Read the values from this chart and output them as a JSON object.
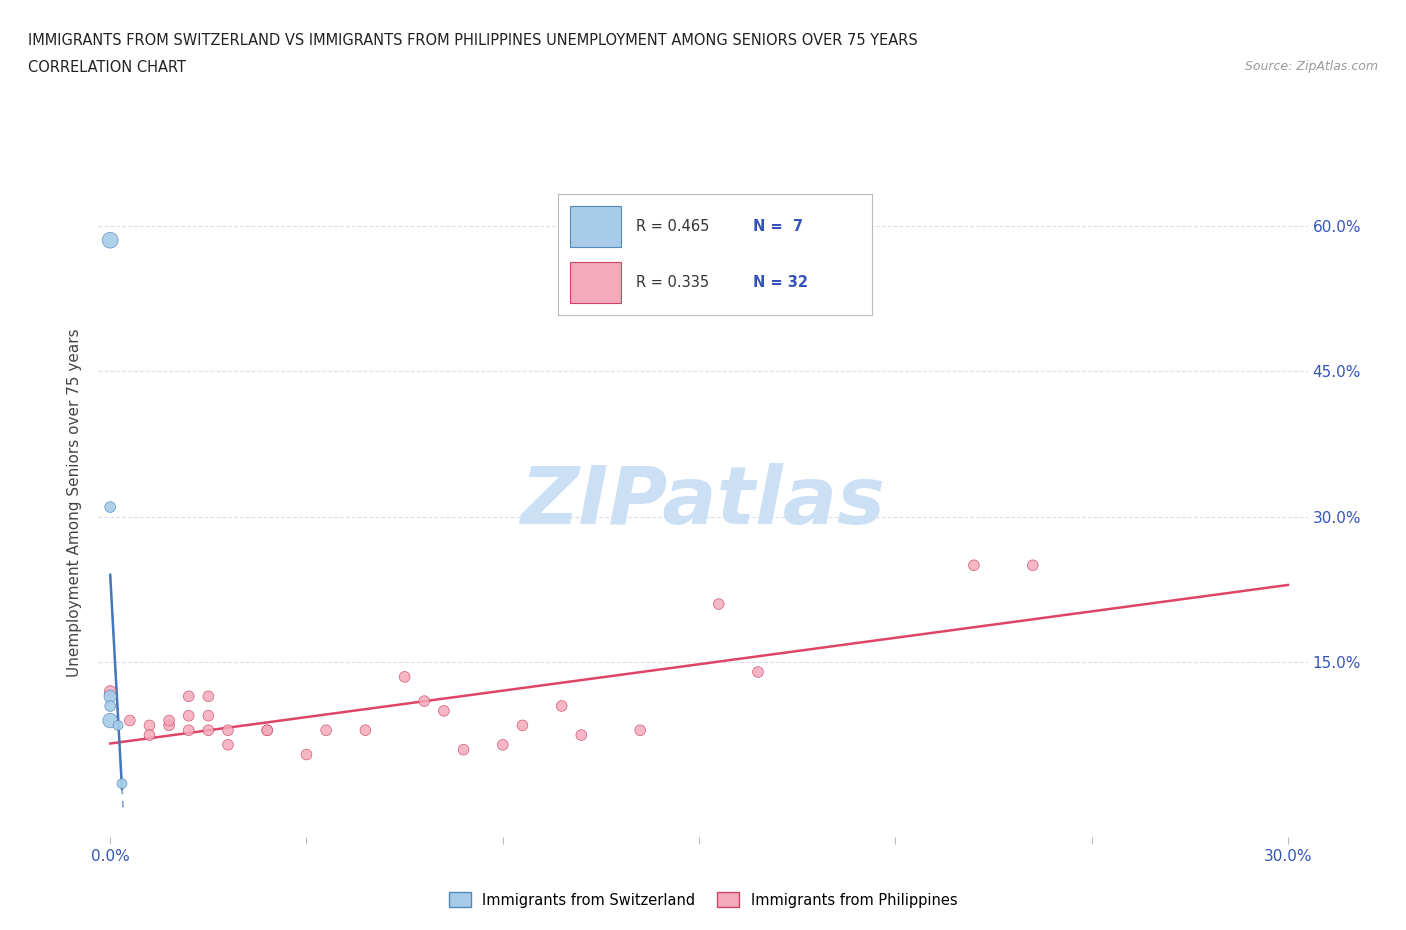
{
  "title_line1": "IMMIGRANTS FROM SWITZERLAND VS IMMIGRANTS FROM PHILIPPINES UNEMPLOYMENT AMONG SENIORS OVER 75 YEARS",
  "title_line2": "CORRELATION CHART",
  "source_text": "Source: ZipAtlas.com",
  "ylabel": "Unemployment Among Seniors over 75 years",
  "xlim": [
    -0.003,
    0.305
  ],
  "ylim": [
    -0.03,
    0.66
  ],
  "xtick_positions": [
    0.0,
    0.05,
    0.1,
    0.15,
    0.2,
    0.25,
    0.3
  ],
  "ytick_positions": [
    0.0,
    0.15,
    0.3,
    0.45,
    0.6
  ],
  "legend_entries": [
    {
      "r": "R = 0.465",
      "n": "N =  7",
      "color": "#a8cce8"
    },
    {
      "r": "R = 0.335",
      "n": "N = 32",
      "color": "#f4aabb"
    }
  ],
  "switzerland_color": "#a8cce8",
  "switzerland_edge": "#5588bb",
  "philippines_color": "#f4aabb",
  "philippines_edge": "#cc4466",
  "trend_sw_color": "#4477bb",
  "trend_ph_color": "#dd4466",
  "watermark_text": "ZIPatlas",
  "watermark_color": "#cce0f5",
  "source_color": "#999999",
  "grid_color": "#ddddee",
  "axis_label_color": "#3355bb",
  "switzerland_x": [
    0.0,
    0.0,
    0.0,
    0.0,
    0.0,
    0.002,
    0.003
  ],
  "switzerland_y": [
    0.585,
    0.31,
    0.115,
    0.105,
    0.09,
    0.085,
    0.025
  ],
  "switzerland_sizes": [
    130,
    60,
    80,
    60,
    110,
    50,
    50
  ],
  "philippines_x": [
    0.0,
    0.005,
    0.01,
    0.01,
    0.015,
    0.015,
    0.02,
    0.02,
    0.02,
    0.025,
    0.025,
    0.025,
    0.03,
    0.03,
    0.04,
    0.04,
    0.05,
    0.055,
    0.065,
    0.075,
    0.08,
    0.085,
    0.09,
    0.1,
    0.105,
    0.115,
    0.12,
    0.135,
    0.155,
    0.165,
    0.22,
    0.235
  ],
  "philippines_y": [
    0.12,
    0.09,
    0.085,
    0.075,
    0.085,
    0.09,
    0.115,
    0.095,
    0.08,
    0.115,
    0.095,
    0.08,
    0.08,
    0.065,
    0.08,
    0.08,
    0.055,
    0.08,
    0.08,
    0.135,
    0.11,
    0.1,
    0.06,
    0.065,
    0.085,
    0.105,
    0.075,
    0.08,
    0.21,
    0.14,
    0.25,
    0.25
  ],
  "philippines_sizes": [
    70,
    60,
    60,
    60,
    60,
    60,
    60,
    60,
    60,
    60,
    60,
    60,
    60,
    60,
    60,
    60,
    60,
    60,
    60,
    60,
    60,
    60,
    60,
    60,
    60,
    60,
    60,
    60,
    60,
    60,
    60,
    60
  ]
}
